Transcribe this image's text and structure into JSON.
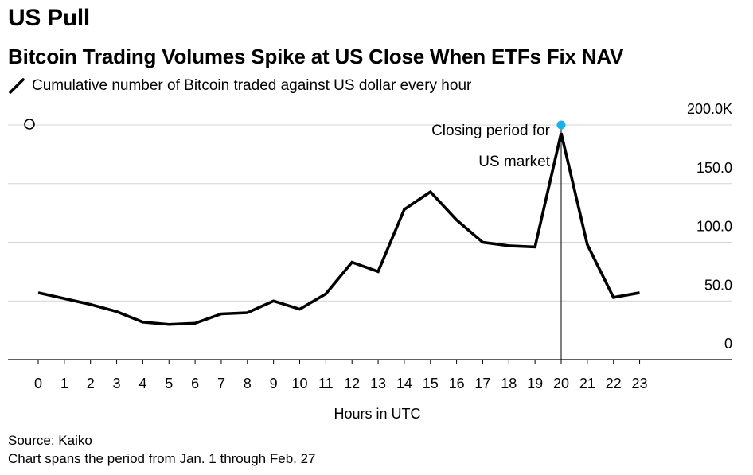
{
  "kicker": "US Pull",
  "headline": "Bitcoin Trading Volumes Spike at US Close When ETFs Fix NAV",
  "legend": {
    "label": "Cumulative number of Bitcoin traded against US dollar every hour",
    "icon": "line-swatch-icon"
  },
  "source": "Source: Kaiko",
  "note": "Chart spans the period from Jan. 1 through Feb. 27",
  "chart_data": {
    "type": "line",
    "title": "Bitcoin Trading Volumes Spike at US Close When ETFs Fix NAV",
    "xlabel": "Hours in UTC",
    "ylabel": "",
    "categories": [
      "0",
      "1",
      "2",
      "3",
      "4",
      "5",
      "6",
      "7",
      "8",
      "9",
      "10",
      "11",
      "12",
      "13",
      "14",
      "15",
      "16",
      "17",
      "18",
      "19",
      "20",
      "21",
      "22",
      "23"
    ],
    "series": [
      {
        "name": "Cumulative number of Bitcoin traded against US dollar every hour",
        "color": "#000000",
        "values": [
          57,
          52,
          47,
          41,
          32,
          30,
          31,
          39,
          40,
          50,
          43,
          56,
          83,
          75,
          128,
          143,
          119,
          100,
          97,
          96,
          193,
          98,
          53,
          57
        ]
      }
    ],
    "ylim": [
      0,
      200
    ],
    "y_ticks": [
      0,
      50,
      100,
      150,
      200
    ],
    "y_tick_labels": [
      "0",
      "50.0",
      "100.0",
      "150.0",
      "200.0K"
    ],
    "grid": true,
    "annotation": {
      "x": "20",
      "lines": [
        "Closing period for",
        "US market"
      ],
      "marker_color": "#1ab0f0"
    }
  }
}
